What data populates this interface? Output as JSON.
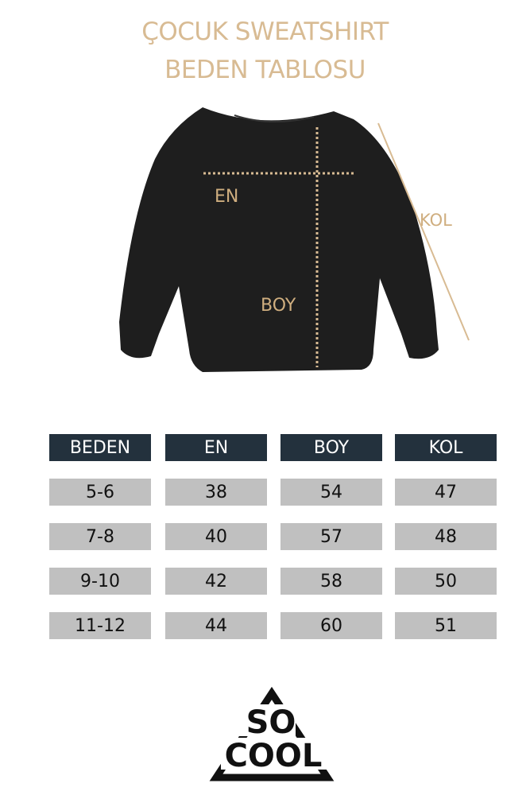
{
  "title": {
    "line1": "ÇOCUK SWEATSHIRT",
    "line2": "BEDEN TABLOSU"
  },
  "diagram": {
    "labels": {
      "en": "EN",
      "boy": "BOY",
      "kol": "KOL"
    },
    "garment_color": "#1e1e1e",
    "measure_color": "#d8bb93"
  },
  "table": {
    "headers": [
      "BEDEN",
      "EN",
      "BOY",
      "KOL"
    ],
    "rows": [
      [
        "5-6",
        "38",
        "54",
        "47"
      ],
      [
        "7-8",
        "40",
        "57",
        "48"
      ],
      [
        "9-10",
        "42",
        "58",
        "50"
      ],
      [
        "11-12",
        "44",
        "60",
        "51"
      ]
    ],
    "header_color": "#23313d",
    "cell_color": "#c0c0c0"
  },
  "logo": {
    "text": "SO COOL"
  }
}
